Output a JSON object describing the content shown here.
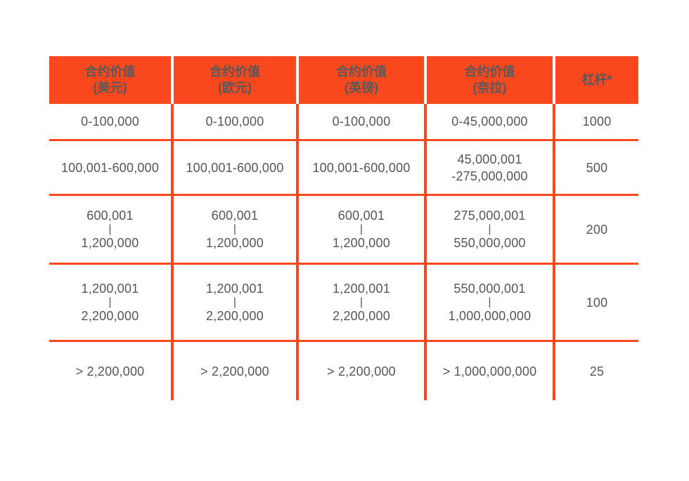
{
  "colors": {
    "accent": "#F9481E",
    "header_text": "#58595B",
    "body_text": "#55565A",
    "header_divider": "#FFFFFF",
    "background": "#FFFFFF"
  },
  "table": {
    "header": [
      {
        "line1": "合约价值",
        "line2": "(美元)"
      },
      {
        "line1": "合约价值",
        "line2": "(欧元)"
      },
      {
        "line1": "合约价值",
        "line2": "(英镑)"
      },
      {
        "line1": "合约价值",
        "line2": "(奈拉)"
      },
      {
        "line1": "杠杆*",
        "line2": ""
      }
    ],
    "rows": [
      [
        [
          "0-100,000"
        ],
        [
          "0-100,000"
        ],
        [
          "0-100,000"
        ],
        [
          "0-45,000,000"
        ],
        [
          "1000"
        ]
      ],
      [
        [
          "100,001-600,000"
        ],
        [
          "100,001-600,000"
        ],
        [
          "100,001-600,000"
        ],
        [
          "45,000,001",
          "-275,000,000"
        ],
        [
          "500"
        ]
      ],
      [
        [
          "600,001",
          "|",
          "1,200,000"
        ],
        [
          "600,001",
          "|",
          "1,200,000"
        ],
        [
          "600,001",
          "|",
          "1,200,000"
        ],
        [
          "275,000,001",
          "|",
          "550,000,000"
        ],
        [
          "200"
        ]
      ],
      [
        [
          "1,200,001",
          "|",
          "2,200,000"
        ],
        [
          "1,200,001",
          "|",
          "2,200,000"
        ],
        [
          "1,200,001",
          "|",
          "2,200,000"
        ],
        [
          "550,000,001",
          "|",
          "1,000,000,000"
        ],
        [
          "100"
        ]
      ],
      [
        [
          "> 2,200,000"
        ],
        [
          "> 2,200,000"
        ],
        [
          "> 2,200,000"
        ],
        [
          "> 1,000,000,000"
        ],
        [
          "25"
        ]
      ]
    ]
  },
  "chart_data": {
    "type": "table",
    "columns": [
      "合约价值 (美元)",
      "合约价值 (欧元)",
      "合约价值 (英镑)",
      "合约价值 (奈拉)",
      "杠杆*"
    ],
    "rows": [
      [
        "0-100,000",
        "0-100,000",
        "0-100,000",
        "0-45,000,000",
        "1000"
      ],
      [
        "100,001-600,000",
        "100,001-600,000",
        "100,001-600,000",
        "45,000,001 -275,000,000",
        "500"
      ],
      [
        "600,001 | 1,200,000",
        "600,001 | 1,200,000",
        "600,001 | 1,200,000",
        "275,000,001 | 550,000,000",
        "200"
      ],
      [
        "1,200,001 | 2,200,000",
        "1,200,001 | 2,200,000",
        "1,200,001 | 2,200,000",
        "550,000,001 | 1,000,000,000",
        "100"
      ],
      [
        "> 2,200,000",
        "> 2,200,000",
        "> 2,200,000",
        "> 1,000,000,000",
        "25"
      ]
    ],
    "title": "",
    "legend": [],
    "grid": "internal orange rules, no outer border"
  }
}
